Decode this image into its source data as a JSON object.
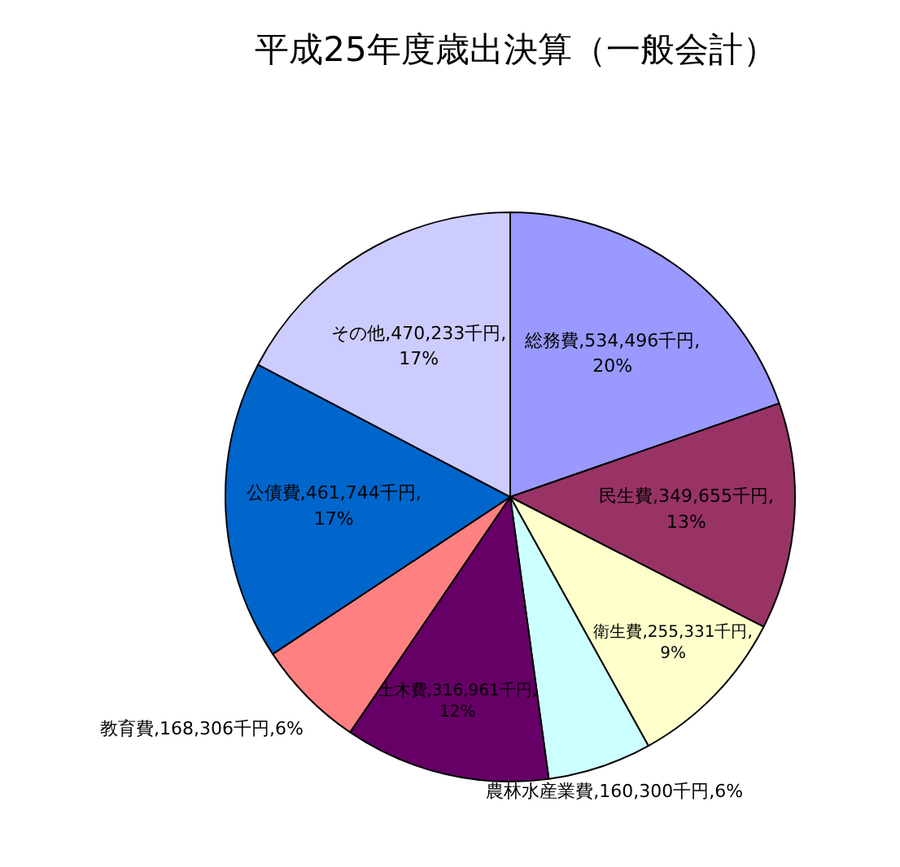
{
  "chart_data": {
    "type": "pie",
    "title": "平成25年度歳出決算（一般会計）",
    "categories": [
      "総務費",
      "民生費",
      "衛生費",
      "農林水産業費",
      "土木費",
      "教育費",
      "公債費",
      "その他"
    ],
    "values": [
      534496,
      349655,
      255331,
      160300,
      316961,
      168306,
      461744,
      470233
    ],
    "colors": [
      "#9999ff",
      "#993366",
      "#ffffcc",
      "#ccffff",
      "#660066",
      "#ff8080",
      "#0066cc",
      "#ccccff"
    ],
    "value_labels": [
      "534,496千円,20%",
      "349,655千円,13%",
      "255,331千円,9%",
      "160,300千円,6%",
      "316,961千円,12%",
      "168,306千円,6%",
      "461,744千円,17%",
      "470,233千円,17%"
    ]
  }
}
